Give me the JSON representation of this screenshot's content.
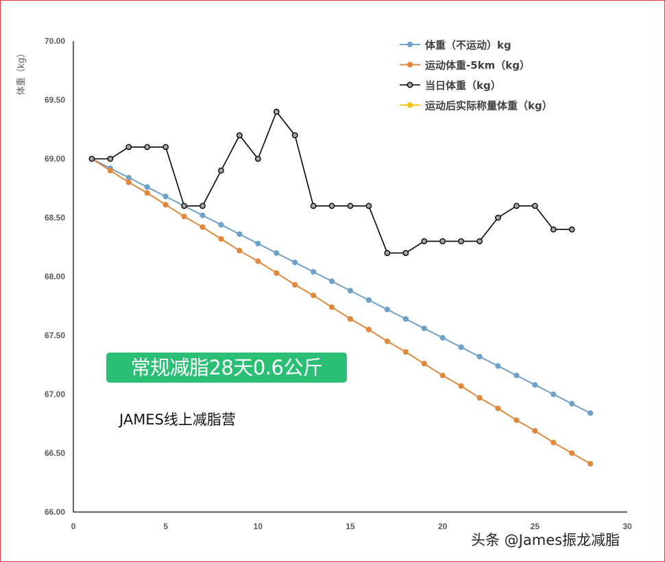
{
  "chart_data": {
    "type": "line",
    "ylabel": "体重（kg）",
    "xlim": [
      0,
      30
    ],
    "ylim": [
      66.0,
      70.0
    ],
    "x_ticks": [
      0,
      5,
      10,
      15,
      20,
      25,
      30
    ],
    "y_ticks": [
      "66.00",
      "66.50",
      "67.00",
      "67.50",
      "68.00",
      "68.50",
      "69.00",
      "69.50",
      "70.00"
    ],
    "grid": false,
    "legend_position": "top-right",
    "series": [
      {
        "name": "体重（不运动）kg",
        "color": "#6fa0c8",
        "marker_fill": "#6fa0c8",
        "x": [
          1,
          2,
          3,
          4,
          5,
          6,
          7,
          8,
          9,
          10,
          11,
          12,
          13,
          14,
          15,
          16,
          17,
          18,
          19,
          20,
          21,
          22,
          23,
          24,
          25,
          26,
          27,
          28
        ],
        "values": [
          69.0,
          68.92,
          68.84,
          68.76,
          68.68,
          68.6,
          68.52,
          68.44,
          68.36,
          68.28,
          68.2,
          68.12,
          68.04,
          67.96,
          67.88,
          67.8,
          67.72,
          67.64,
          67.56,
          67.48,
          67.4,
          67.32,
          67.24,
          67.16,
          67.08,
          67.0,
          66.92,
          66.84
        ]
      },
      {
        "name": "运动体重-5km（kg）",
        "color": "#e0883e",
        "marker_fill": "#e0883e",
        "x": [
          1,
          2,
          3,
          4,
          5,
          6,
          7,
          8,
          9,
          10,
          11,
          12,
          13,
          14,
          15,
          16,
          17,
          18,
          19,
          20,
          21,
          22,
          23,
          24,
          25,
          26,
          27,
          28
        ],
        "values": [
          69.0,
          68.9,
          68.8,
          68.71,
          68.61,
          68.51,
          68.42,
          68.32,
          68.22,
          68.13,
          68.03,
          67.93,
          67.84,
          67.74,
          67.64,
          67.55,
          67.45,
          67.36,
          67.26,
          67.16,
          67.07,
          66.97,
          66.88,
          66.78,
          66.69,
          66.59,
          66.5,
          66.41
        ]
      },
      {
        "name": "当日体重（kg）",
        "color": "#000000",
        "marker_fill": "#a6a6a6",
        "x": [
          1,
          2,
          3,
          4,
          5,
          6,
          7,
          8,
          9,
          10,
          11,
          12,
          13,
          14,
          15,
          16,
          17,
          18,
          19,
          20,
          21,
          22,
          23,
          24,
          25,
          26,
          27
        ],
        "values": [
          69.0,
          69.0,
          69.1,
          69.1,
          69.1,
          68.6,
          68.6,
          68.9,
          69.2,
          69.0,
          69.4,
          69.2,
          68.6,
          68.6,
          68.6,
          68.6,
          68.2,
          68.2,
          68.3,
          68.3,
          68.3,
          68.3,
          68.5,
          68.6,
          68.6,
          68.4,
          68.4
        ]
      },
      {
        "name": "运动后实际称量体重（kg）",
        "color": "#f5c518",
        "marker_fill": "#f5c518",
        "x": [],
        "values": []
      }
    ]
  },
  "annotations": {
    "headline": "常规减脂28天0.6公斤",
    "headline_bg": "#2bbf76",
    "camp": "JAMES线上减脂营",
    "watermark": "头条 @James振龙减脂"
  },
  "frame_color": "#e0383e"
}
